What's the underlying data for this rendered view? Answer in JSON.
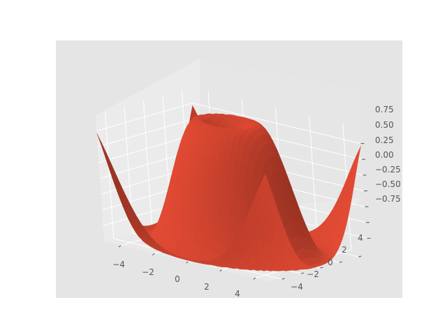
{
  "chart_data": {
    "type": "surface",
    "function": "sin(sqrt(x^2 + y^2))",
    "x_range": [
      -5,
      5
    ],
    "y_range": [
      -5,
      5
    ],
    "x_step": 0.25,
    "y_step": 0.25,
    "z_range": [
      -1,
      1
    ],
    "xticks": [
      "−4",
      "−2",
      "0",
      "2",
      "4"
    ],
    "yticks": [
      "−4",
      "−2",
      "0",
      "2",
      "4"
    ],
    "zticks": [
      "−0.75",
      "−0.50",
      "−0.25",
      "0.00",
      "0.25",
      "0.50",
      "0.75"
    ],
    "grid": true,
    "style": "ggplot",
    "colors": {
      "surface": "#e24a33",
      "axes_background": "#e5e5e5",
      "pane_face": "#ebebeb",
      "grid": "#ffffff",
      "tick_label": "#555555"
    }
  }
}
